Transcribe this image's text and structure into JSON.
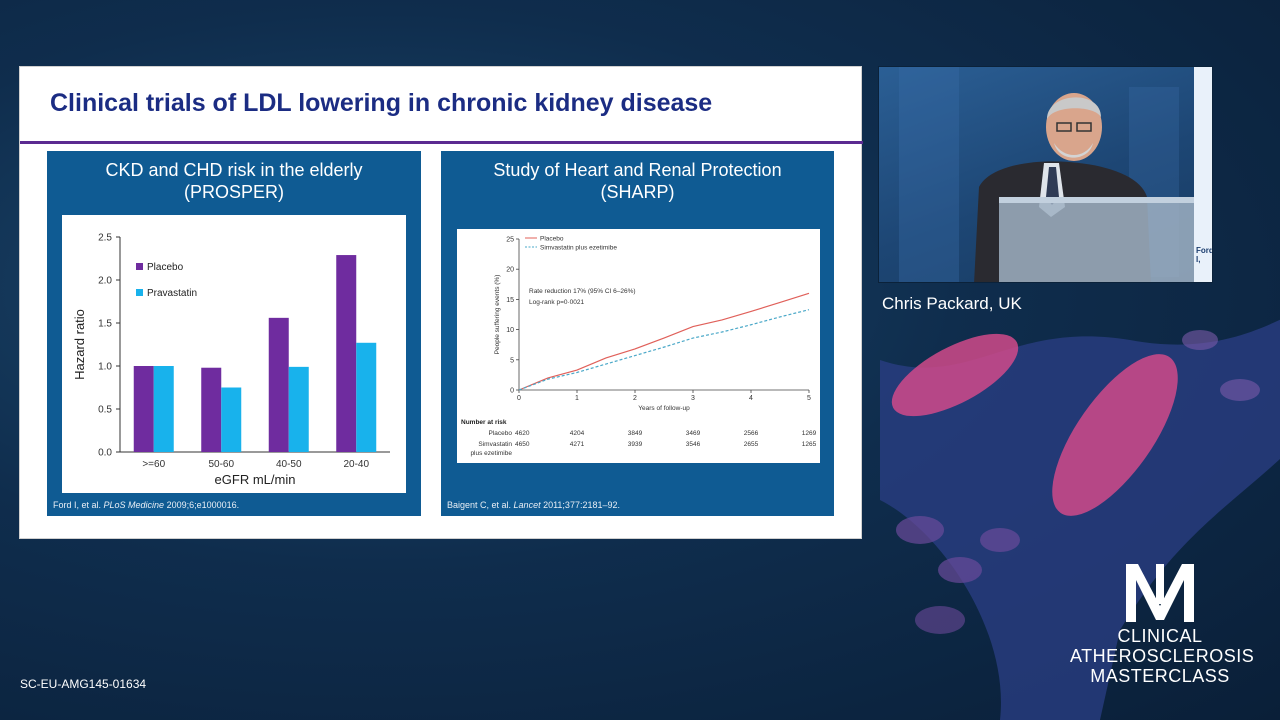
{
  "slide": {
    "title": "Clinical trials of LDL lowering in chronic kidney disease",
    "left_panel": {
      "title_line1": "CKD and CHD risk in the elderly",
      "title_line2": "(PROSPER)",
      "citation_pre": "Ford I, et al. ",
      "citation_journal": "PLoS Medicine",
      "citation_post": " 2009;6;e1000016."
    },
    "right_panel": {
      "title_line1": "Study of Heart and Renal Protection",
      "title_line2": "(SHARP)",
      "citation_pre": "Baigent C, et al. ",
      "citation_journal": "Lancet",
      "citation_post": " 2011;377:2181–92."
    }
  },
  "chart_data": [
    {
      "type": "bar",
      "categories": [
        ">=60",
        "50-60",
        "40-50",
        "20-40"
      ],
      "series": [
        {
          "name": "Placebo",
          "values": [
            1.0,
            0.98,
            1.56,
            2.29
          ],
          "color": "#6f2c9f"
        },
        {
          "name": "Pravastatin",
          "values": [
            1.0,
            0.75,
            0.99,
            1.27
          ],
          "color": "#18b2ec"
        }
      ],
      "xlabel": "eGFR mL/min",
      "ylabel": "Hazard ratio",
      "ylim": [
        0,
        2.5
      ],
      "yticks": [
        "0.0",
        "0.5",
        "1.0",
        "1.5",
        "2.0",
        "2.5"
      ],
      "legend": "top-left",
      "grid": false
    },
    {
      "type": "line",
      "x": [
        0,
        0.5,
        1,
        1.5,
        2,
        2.5,
        3,
        3.5,
        4,
        4.5,
        5
      ],
      "series": [
        {
          "name": "Placebo",
          "values": [
            0,
            2.0,
            3.3,
            5.3,
            6.8,
            8.6,
            10.5,
            11.6,
            13.0,
            14.5,
            16.0
          ],
          "color": "#e0605a",
          "dash": "solid"
        },
        {
          "name": "Simvastatin plus ezetimibe",
          "values": [
            0,
            1.8,
            2.9,
            4.3,
            5.7,
            7.1,
            8.6,
            9.6,
            10.8,
            12.1,
            13.3
          ],
          "color": "#4aa8c8",
          "dash": "dashed"
        }
      ],
      "xlabel": "Years of follow-up",
      "ylabel": "People suffering events (%)",
      "xlim": [
        0,
        5
      ],
      "ylim": [
        0,
        25
      ],
      "xticks": [
        "0",
        "1",
        "2",
        "3",
        "4",
        "5"
      ],
      "yticks": [
        "0",
        "5",
        "10",
        "15",
        "20",
        "25"
      ],
      "annotation_line1": "Rate reduction 17% (95% CI 6–26%)",
      "annotation_line2": "Log-rank p=0·0021",
      "legend": "top-left",
      "risk_table": {
        "header": "Number at risk",
        "rows": [
          {
            "label": [
              "Placebo"
            ],
            "values": [
              "4620",
              "4204",
              "3849",
              "3469",
              "2566",
              "1269"
            ]
          },
          {
            "label": [
              "Simvastatin",
              "plus ezetimibe"
            ],
            "values": [
              "4650",
              "4271",
              "3939",
              "3546",
              "2655",
              "1265"
            ]
          }
        ]
      }
    }
  ],
  "video": {
    "screen_text": "Ford I,"
  },
  "speaker": "Chris Packard, UK",
  "logo": {
    "line1": "CLINICAL",
    "line2": "ATHEROSCLEROSIS",
    "line3": "MASTERCLASS"
  },
  "footer_code": "SC-EU-AMG145-01634"
}
